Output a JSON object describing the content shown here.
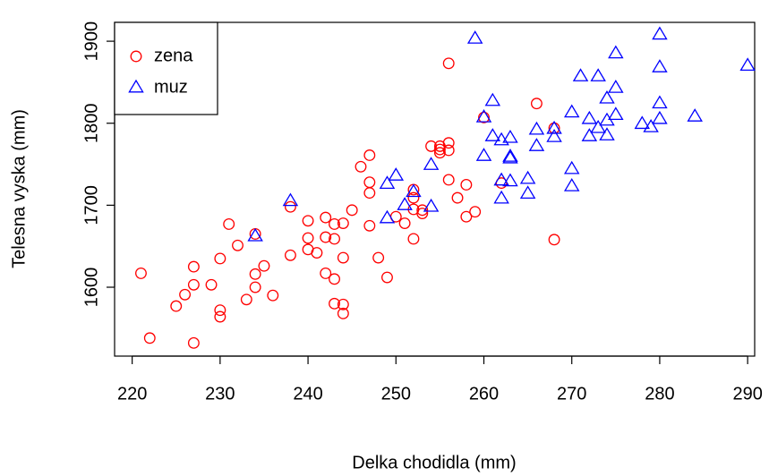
{
  "chart_data": {
    "type": "scatter",
    "x_label": "Delka chodidla (mm)",
    "y_label": "Telesna vyska (mm)",
    "xlim": [
      218,
      290.8
    ],
    "ylim": [
      1516,
      1923
    ],
    "xticks": [
      220,
      230,
      240,
      250,
      260,
      270,
      280,
      290
    ],
    "yticks": [
      1600,
      1700,
      1800,
      1900
    ],
    "legend_position": "top-left",
    "series": [
      {
        "name": "zena",
        "color": "#ff0000",
        "marker": "circle",
        "x": [
          221,
          222,
          227,
          227,
          227,
          226,
          225,
          229,
          230,
          230,
          230,
          231,
          232,
          233,
          234,
          234,
          234,
          235,
          236,
          238,
          238,
          240,
          240,
          240,
          241,
          242,
          242,
          242,
          243,
          243,
          243,
          243,
          244,
          244,
          244,
          244,
          245,
          246,
          247,
          247,
          247,
          247,
          248,
          249,
          250,
          251,
          252,
          252,
          252,
          252,
          253,
          253,
          254,
          255,
          255,
          255,
          256,
          256,
          256,
          256,
          257,
          258,
          258,
          259,
          260,
          262,
          266,
          268,
          268
        ],
        "values": [
          1617,
          1538,
          1625,
          1603,
          1532,
          1591,
          1577,
          1603,
          1635,
          1572,
          1564,
          1677,
          1651,
          1585,
          1665,
          1616,
          1600,
          1626,
          1590,
          1698,
          1639,
          1681,
          1660,
          1646,
          1642,
          1685,
          1661,
          1617,
          1677,
          1659,
          1610,
          1580,
          1678,
          1636,
          1579,
          1568,
          1694,
          1747,
          1761,
          1728,
          1715,
          1675,
          1636,
          1612,
          1686,
          1678,
          1719,
          1709,
          1695,
          1659,
          1694,
          1690,
          1772,
          1772,
          1768,
          1764,
          1776,
          1767,
          1873,
          1731,
          1709,
          1725,
          1686,
          1692,
          1807,
          1727,
          1824,
          1794,
          1658
        ]
      },
      {
        "name": "muz",
        "color": "#0000ff",
        "marker": "triangle",
        "x": [
          234,
          238,
          249,
          249,
          250,
          251,
          252,
          254,
          254,
          259,
          260,
          260,
          261,
          261,
          262,
          262,
          262,
          263,
          263,
          263,
          263,
          265,
          265,
          266,
          266,
          268,
          268,
          270,
          270,
          270,
          271,
          272,
          272,
          273,
          273,
          274,
          274,
          274,
          275,
          275,
          275,
          278,
          279,
          280,
          280,
          280,
          280,
          284,
          290
        ],
        "values": [
          1662,
          1705,
          1726,
          1684,
          1736,
          1700,
          1716,
          1698,
          1749,
          1903,
          1760,
          1807,
          1827,
          1784,
          1779,
          1730,
          1708,
          1782,
          1759,
          1757,
          1729,
          1732,
          1714,
          1792,
          1772,
          1793,
          1783,
          1813,
          1744,
          1723,
          1857,
          1805,
          1784,
          1857,
          1794,
          1830,
          1803,
          1785,
          1885,
          1843,
          1810,
          1799,
          1795,
          1908,
          1868,
          1824,
          1805,
          1808,
          1870
        ]
      }
    ]
  }
}
